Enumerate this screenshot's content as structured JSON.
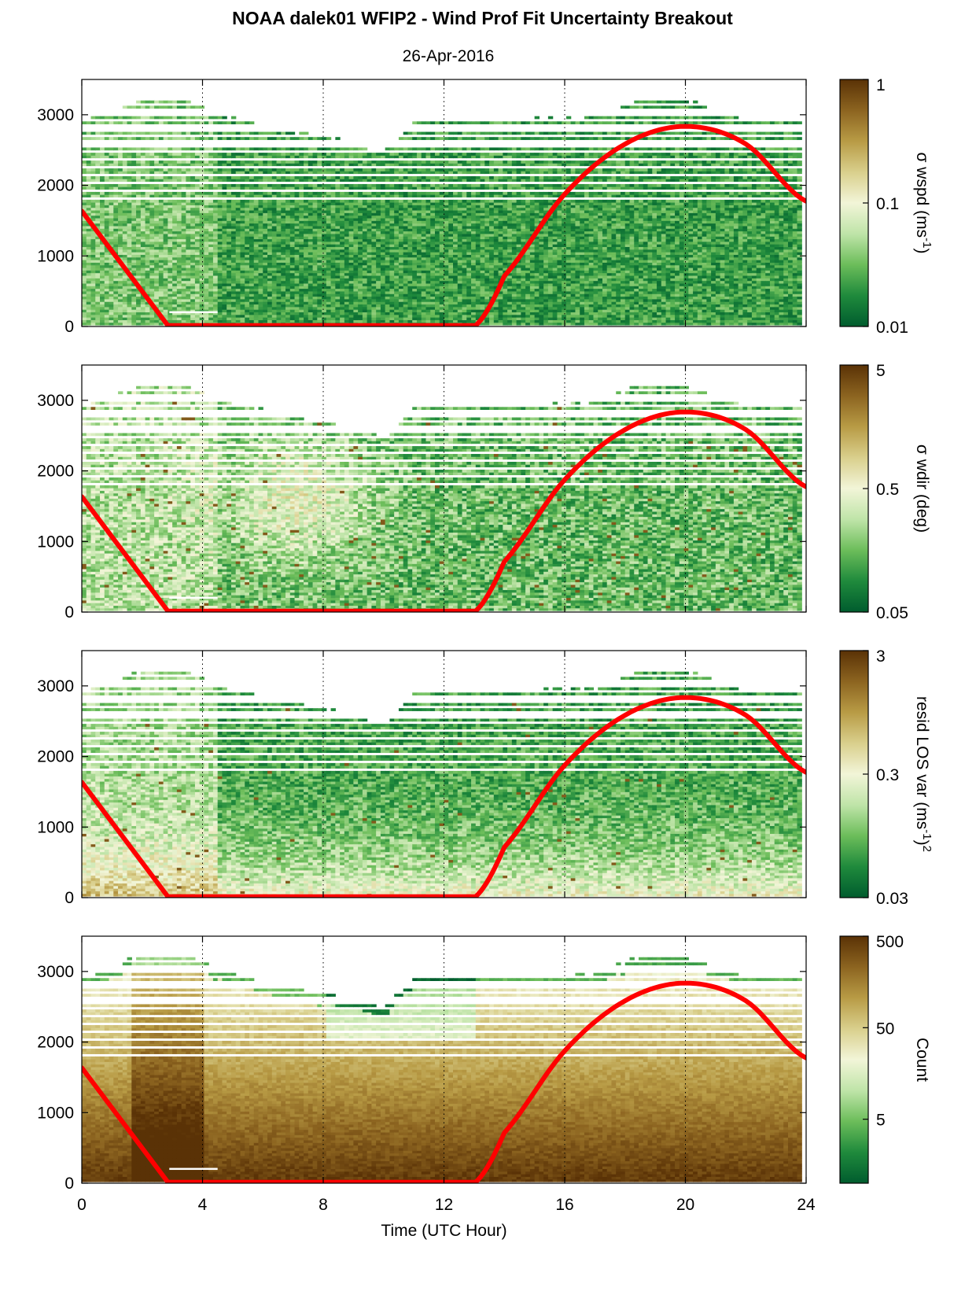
{
  "title": "NOAA dalek01 WFIP2 - Wind Prof Fit Uncertainty Breakout",
  "subtitle": "26-Apr-2016",
  "colors": {
    "colormap": [
      "#005c2e",
      "#1f8a3c",
      "#6cbd5a",
      "#bfe4a8",
      "#f2f5d8",
      "#d9cf8c",
      "#b89b45",
      "#8c6420",
      "#5a3206"
    ],
    "overlay_line": "#ff0000",
    "axis": "#000000"
  },
  "chart_data": [
    {
      "type": "heatmap",
      "panel": 1,
      "xlabel": "",
      "ylabel": "",
      "xlim": [
        0,
        24
      ],
      "ylim": [
        0,
        3500
      ],
      "xticks": [
        0,
        4,
        8,
        12,
        16,
        20,
        24
      ],
      "yticks": [
        0,
        1000,
        2000,
        3000
      ],
      "vertical_dotted_lines_x": [
        4,
        8,
        12,
        16,
        20,
        24
      ],
      "colorbar": {
        "label": "σ wspd (ms",
        "label_sup": "-1",
        "label_end": ")",
        "scale": "log",
        "ticks": [
          "1",
          "0.1",
          "0.01"
        ],
        "range": [
          0.01,
          1
        ]
      },
      "data_top_profile": {
        "x": [
          0,
          2,
          3.5,
          4.5,
          6,
          7.5,
          9,
          10,
          11,
          14,
          17,
          18.5,
          20,
          22,
          24
        ],
        "y": [
          2900,
          3200,
          3200,
          3000,
          2850,
          2700,
          2600,
          2450,
          2900,
          2900,
          2950,
          3200,
          3200,
          2900,
          2900
        ]
      },
      "overlay_line": {
        "x": [
          0,
          2.85,
          13.05,
          14,
          16,
          18,
          20,
          22,
          24
        ],
        "y": [
          1620,
          0,
          0,
          700,
          1860,
          2570,
          2820,
          2570,
          1760
        ]
      }
    },
    {
      "type": "heatmap",
      "panel": 2,
      "xlabel": "",
      "ylabel": "",
      "xlim": [
        0,
        24
      ],
      "ylim": [
        0,
        3500
      ],
      "xticks": [
        0,
        4,
        8,
        12,
        16,
        20,
        24
      ],
      "yticks": [
        0,
        1000,
        2000,
        3000
      ],
      "vertical_dotted_lines_x": [
        4,
        8,
        12,
        16,
        20,
        24
      ],
      "colorbar": {
        "label": "σ wdir (deg)",
        "label_sup": "",
        "label_end": "",
        "scale": "log",
        "ticks": [
          "5",
          "0.5",
          "0.05"
        ],
        "range": [
          0.05,
          5
        ]
      },
      "overlay_line": {
        "x": [
          0,
          2.85,
          13.05,
          14,
          16,
          18,
          20,
          22,
          24
        ],
        "y": [
          1620,
          0,
          0,
          700,
          1860,
          2570,
          2820,
          2570,
          1760
        ]
      }
    },
    {
      "type": "heatmap",
      "panel": 3,
      "xlabel": "",
      "ylabel": "",
      "xlim": [
        0,
        24
      ],
      "ylim": [
        0,
        3500
      ],
      "xticks": [
        0,
        4,
        8,
        12,
        16,
        20,
        24
      ],
      "yticks": [
        0,
        1000,
        2000,
        3000
      ],
      "vertical_dotted_lines_x": [
        4,
        8,
        12,
        16,
        20,
        24
      ],
      "colorbar": {
        "label": "resid LOS var (ms",
        "label_sup": "-1",
        "label_end": ")",
        "label_sup2": "2",
        "scale": "log",
        "ticks": [
          "3",
          "0.3",
          "0.03"
        ],
        "range": [
          0.03,
          3
        ]
      },
      "overlay_line": {
        "x": [
          0,
          2.85,
          13.05,
          14,
          16,
          18,
          20,
          22,
          24
        ],
        "y": [
          1620,
          0,
          0,
          700,
          1860,
          2570,
          2820,
          2570,
          1760
        ]
      }
    },
    {
      "type": "heatmap",
      "panel": 4,
      "xlabel": "Time (UTC Hour)",
      "ylabel": "",
      "xlim": [
        0,
        24
      ],
      "ylim": [
        0,
        3500
      ],
      "xticks": [
        0,
        4,
        8,
        12,
        16,
        20,
        24
      ],
      "yticks": [
        0,
        1000,
        2000,
        3000
      ],
      "vertical_dotted_lines_x": [
        4,
        8,
        12,
        16,
        20,
        24
      ],
      "colorbar": {
        "label": "Count",
        "label_sup": "",
        "label_end": "",
        "scale": "log",
        "ticks": [
          "500",
          "50",
          "5"
        ],
        "range": [
          1,
          500
        ]
      },
      "overlay_line": {
        "x": [
          0,
          2.85,
          13.05,
          14,
          16,
          18,
          20,
          22,
          24
        ],
        "y": [
          1620,
          0,
          0,
          700,
          1860,
          2570,
          2820,
          2570,
          1760
        ]
      }
    }
  ]
}
